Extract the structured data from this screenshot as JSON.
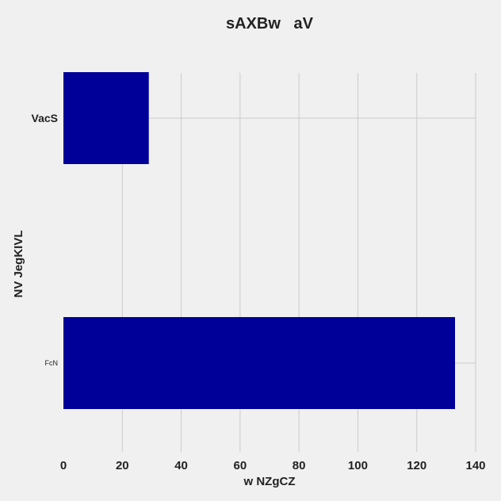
{
  "chart_data": {
    "type": "bar",
    "orientation": "horizontal",
    "title": "sAXBw   aV",
    "xlabel": "w NZgCZ",
    "ylabel": "NV JegKIVL",
    "categories": [
      "VacS",
      "FcN"
    ],
    "values": [
      29,
      133
    ],
    "xlim": [
      0,
      140
    ],
    "xticks": [
      0,
      20,
      40,
      60,
      80,
      100,
      120,
      140
    ],
    "xtick_labels": [
      "0",
      "20",
      "40",
      "60",
      "80",
      "100",
      "120",
      "140"
    ],
    "grid": true,
    "bar_color": "#000099",
    "background_color": "#f0f0f0",
    "grid_color": "#cbcbcb"
  }
}
